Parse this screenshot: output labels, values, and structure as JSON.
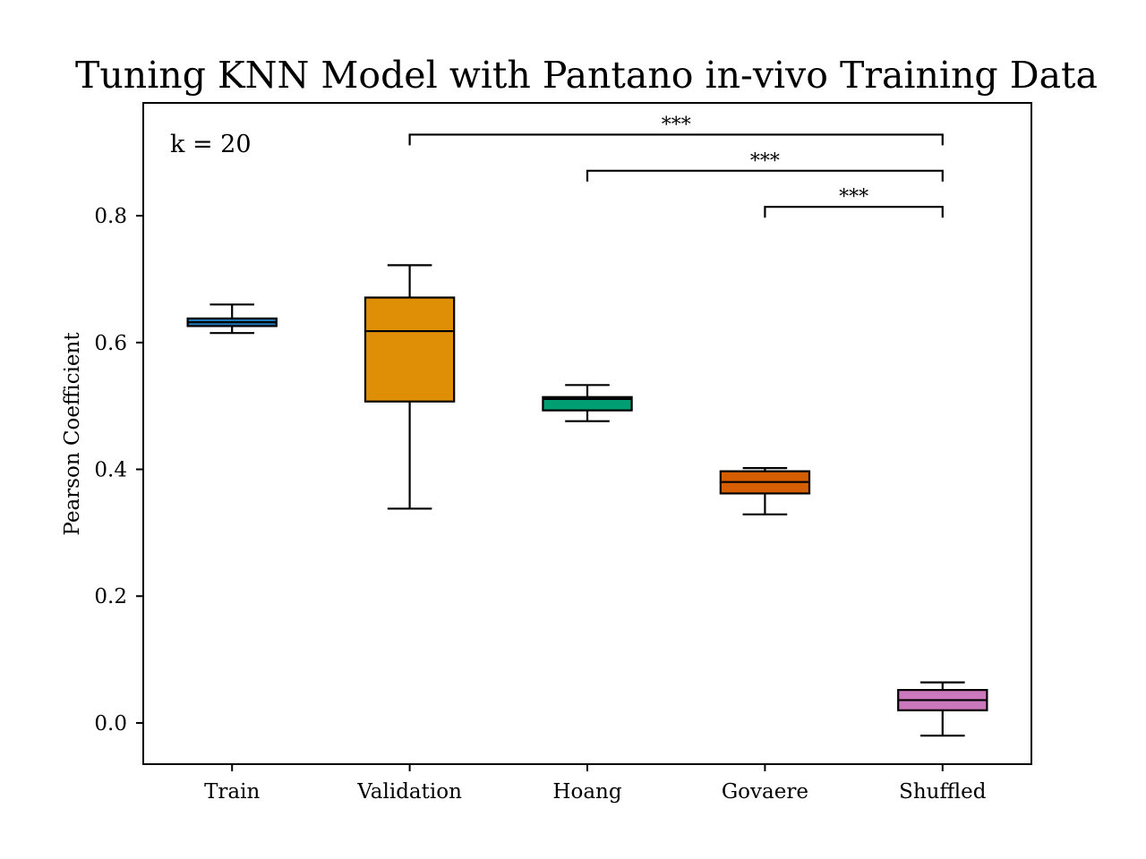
{
  "chart_data": {
    "type": "box",
    "title": "Tuning KNN Model with Pantano in-vivo Training Data",
    "xlabel": "",
    "ylabel": "Pearson Coefficient",
    "annotation": "k = 20",
    "ylim": [
      -0.065,
      0.978
    ],
    "yticks": [
      "0.0",
      "0.2",
      "0.4",
      "0.6",
      "0.8"
    ],
    "ytick_values": [
      0.0,
      0.2,
      0.4,
      0.6,
      0.8
    ],
    "grid": false,
    "categories": [
      "Train",
      "Validation",
      "Hoang",
      "Govaere",
      "Shuffled"
    ],
    "boxes": [
      {
        "category": "Train",
        "whisker_low": 0.615,
        "q1": 0.626,
        "median": 0.632,
        "q3": 0.638,
        "whisker_high": 0.66,
        "color": "#1f77b4"
      },
      {
        "category": "Validation",
        "whisker_low": 0.338,
        "q1": 0.507,
        "median": 0.618,
        "q3": 0.671,
        "whisker_high": 0.722,
        "color": "#de8f05"
      },
      {
        "category": "Hoang",
        "whisker_low": 0.476,
        "q1": 0.493,
        "median": 0.511,
        "q3": 0.514,
        "whisker_high": 0.533,
        "color": "#029e73"
      },
      {
        "category": "Govaere",
        "whisker_low": 0.329,
        "q1": 0.362,
        "median": 0.38,
        "q3": 0.397,
        "whisker_high": 0.402,
        "color": "#d55e00"
      },
      {
        "category": "Shuffled",
        "whisker_low": -0.02,
        "q1": 0.02,
        "median": 0.036,
        "q3": 0.052,
        "whisker_high": 0.064,
        "color": "#cc78bc"
      }
    ],
    "significance": [
      {
        "from": "Validation",
        "to": "Shuffled",
        "label": "***",
        "level": 0.928
      },
      {
        "from": "Hoang",
        "to": "Shuffled",
        "label": "***",
        "level": 0.871
      },
      {
        "from": "Govaere",
        "to": "Shuffled",
        "label": "***",
        "level": 0.814
      }
    ]
  }
}
